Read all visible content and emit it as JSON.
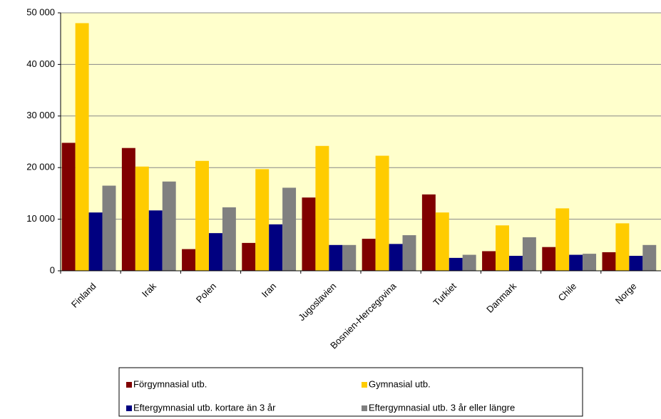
{
  "chart_data": {
    "type": "bar",
    "categories": [
      "Finland",
      "Irak",
      "Polen",
      "Iran",
      "Jugoslavien",
      "Bosnien-Hercegovina",
      "Turkiet",
      "Danmark",
      "Chile",
      "Norge"
    ],
    "series": [
      {
        "name": "Förgymnasial utb.",
        "color": "#800000",
        "values": [
          24800,
          23800,
          4200,
          5400,
          14200,
          6200,
          14800,
          3800,
          4600,
          3600
        ]
      },
      {
        "name": "Gymnasial utb.",
        "color": "#ffcc00",
        "values": [
          48000,
          20200,
          21300,
          19700,
          24200,
          22300,
          11300,
          8800,
          12100,
          9200
        ]
      },
      {
        "name": "Eftergymnasial utb. kortare än 3 år",
        "color": "#000080",
        "values": [
          11300,
          11700,
          7300,
          9000,
          5000,
          5200,
          2500,
          2900,
          3100,
          2900
        ]
      },
      {
        "name": "Eftergymnasial utb. 3 år eller längre",
        "color": "#808080",
        "values": [
          16500,
          17300,
          12300,
          16100,
          5000,
          6900,
          3100,
          6500,
          3300,
          5000
        ]
      }
    ],
    "ylim": [
      0,
      50000
    ],
    "yticks": [
      0,
      {
        "value": 10000,
        "label": "10 000"
      },
      {
        "value": 20000,
        "label": "20 000"
      },
      {
        "value": 30000,
        "label": "30 000"
      },
      {
        "value": 40000,
        "label": "40 000"
      },
      {
        "value": 50000,
        "label": "50 000"
      }
    ],
    "grid": true
  }
}
